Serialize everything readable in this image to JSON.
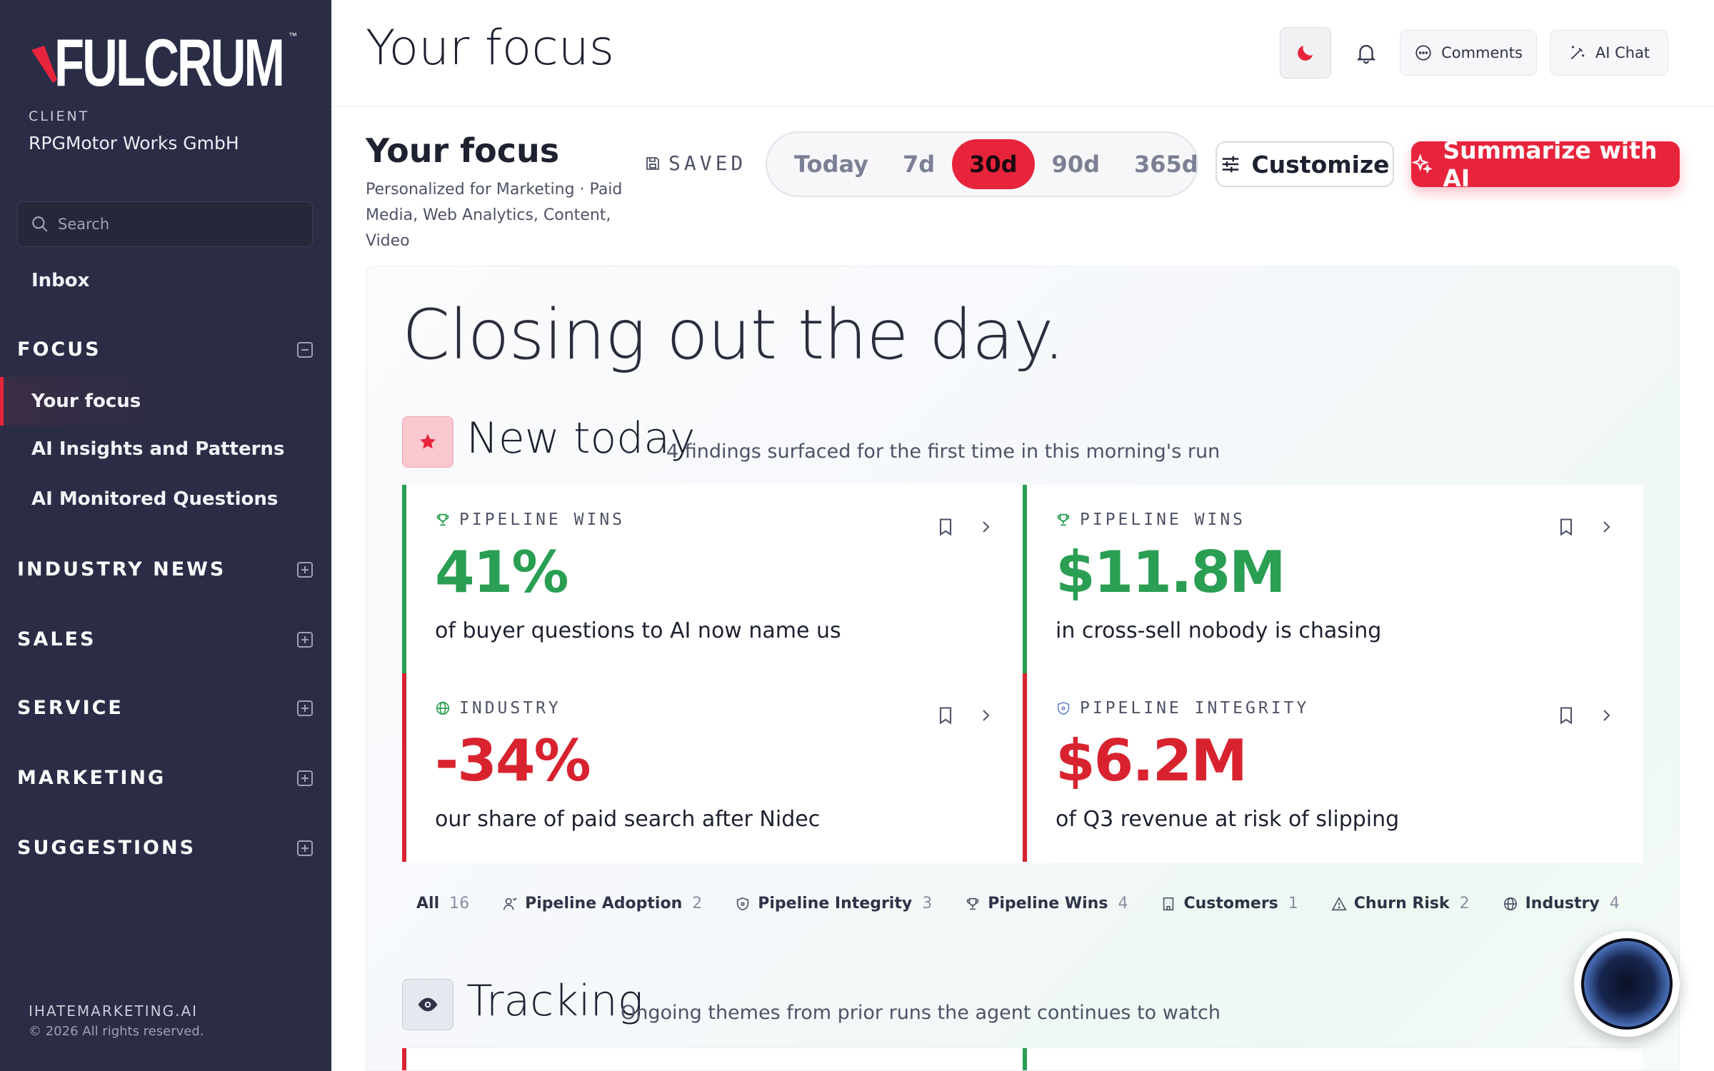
{
  "sidebar": {
    "logo_text": "FULCRUM",
    "client_label": "CLIENT",
    "client_name": "RPGMotor Works GmbH",
    "search_placeholder": "Search",
    "inbox": "Inbox",
    "focus_section": "FOCUS",
    "focus_items": [
      "Your focus",
      "AI Insights and Patterns",
      "AI Monitored Questions"
    ],
    "sections": [
      "INDUSTRY NEWS",
      "SALES",
      "SERVICE",
      "MARKETING",
      "SUGGESTIONS"
    ],
    "footer_brand": "IHATEMARKETING.AI",
    "footer_copy": "© 2026 All rights reserved."
  },
  "topbar": {
    "title": "Your focus",
    "comments_label": "Comments",
    "ai_chat_label": "AI Chat"
  },
  "focus": {
    "title": "Your focus",
    "subtitle": "Personalized for Marketing · Paid Media, Web Analytics, Content, Video",
    "saved_label": "SAVED",
    "ranges": [
      "Today",
      "7d",
      "30d",
      "90d",
      "365d"
    ],
    "active_range": "30d",
    "customize_label": "Customize",
    "summarize_label": "Summarize with AI"
  },
  "main": {
    "headline": "Closing out the day.",
    "new_today": {
      "title": "New today",
      "subtitle": "4 findings surfaced for the first time in this morning's run"
    },
    "tiles": [
      {
        "category": "PIPELINE WINS",
        "value": "41%",
        "desc": "of buyer questions to AI now name us",
        "tone": "green"
      },
      {
        "category": "PIPELINE WINS",
        "value": "$11.8M",
        "desc": "in cross-sell nobody is chasing",
        "tone": "green"
      },
      {
        "category": "INDUSTRY",
        "value": "-34%",
        "desc": "our share of paid search after Nidec",
        "tone": "red"
      },
      {
        "category": "PIPELINE INTEGRITY",
        "value": "$6.2M",
        "desc": "of Q3 revenue at risk of slipping",
        "tone": "red"
      }
    ],
    "filters": [
      {
        "label": "All",
        "count": "16"
      },
      {
        "label": "Pipeline Adoption",
        "count": "2"
      },
      {
        "label": "Pipeline Integrity",
        "count": "3"
      },
      {
        "label": "Pipeline Wins",
        "count": "4"
      },
      {
        "label": "Customers",
        "count": "1"
      },
      {
        "label": "Churn Risk",
        "count": "2"
      },
      {
        "label": "Industry",
        "count": "4"
      }
    ],
    "tracking": {
      "title": "Tracking",
      "subtitle": "Ongoing themes from prior runs the agent continues to watch"
    }
  },
  "colors": {
    "accent": "#e8243d",
    "sidebar_bg": "#2a2d45",
    "positive": "#2a9e52",
    "negative": "#d8232f"
  }
}
